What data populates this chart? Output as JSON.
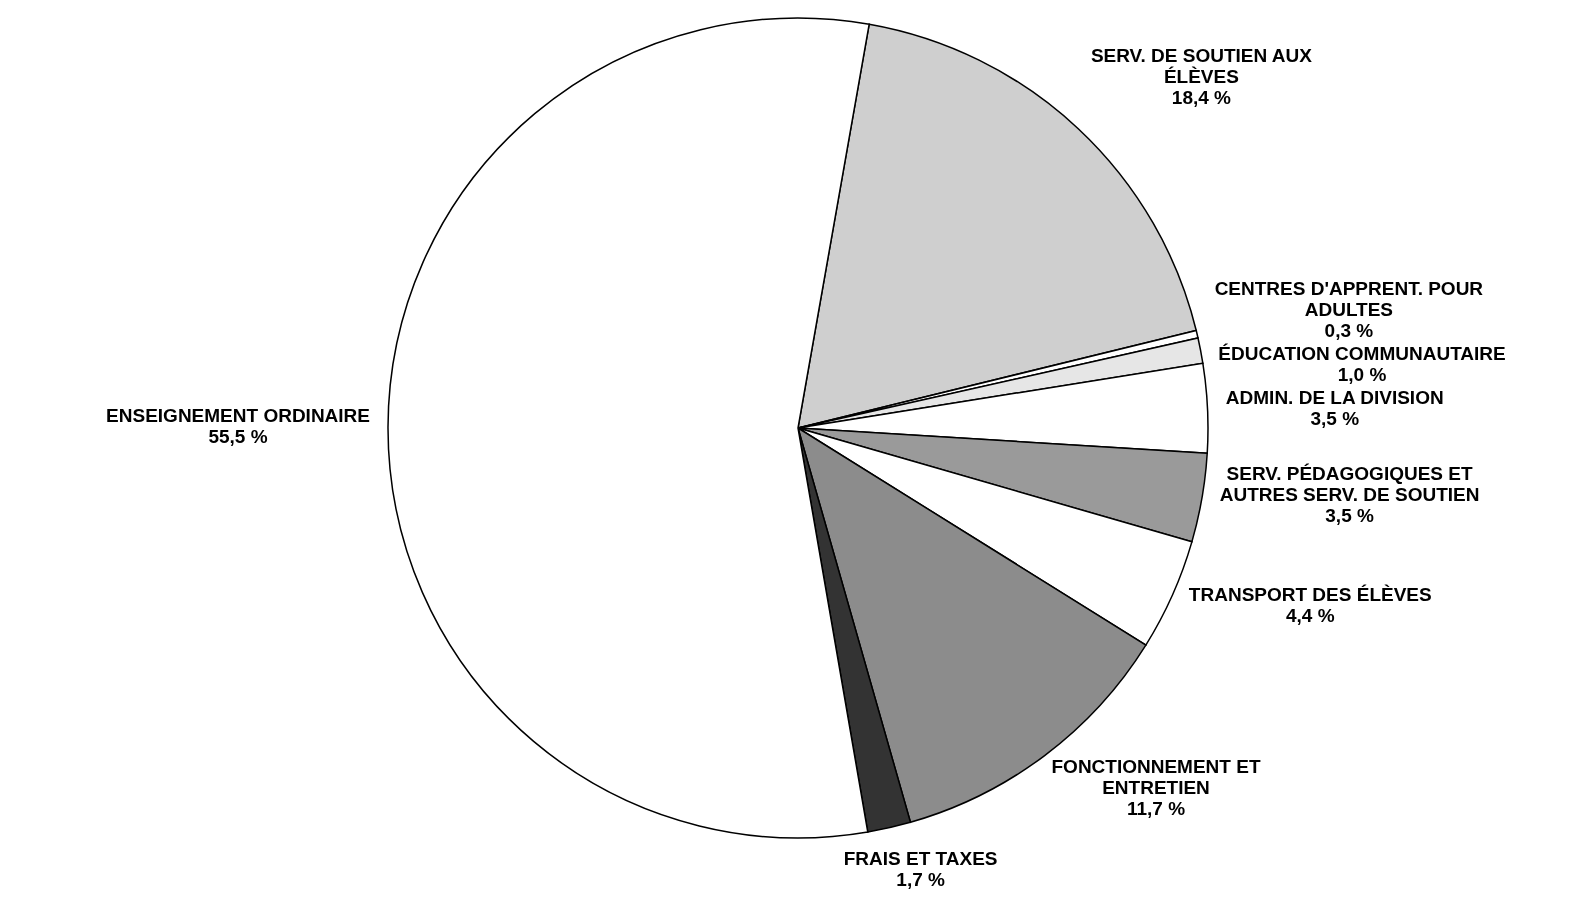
{
  "chart_data": {
    "type": "pie",
    "categories": [
      "SERV. DE SOUTIEN AUX ÉLÈVES",
      "CENTRES D'APPRENT. POUR ADULTES",
      "ÉDUCATION COMMUNAUTAIRE",
      "ADMIN. DE LA DIVISION",
      "SERV. PÉDAGOGIQUES ET AUTRES SERV. DE SOUTIEN",
      "TRANSPORT DES ÉLÈVES",
      "FONCTIONNEMENT ET ENTRETIEN",
      "FRAIS ET TAXES",
      "ENSEIGNEMENT ORDINAIRE"
    ],
    "values": [
      18.4,
      0.3,
      1.0,
      3.5,
      3.5,
      4.4,
      11.7,
      1.7,
      55.5
    ],
    "value_labels": [
      "18,4 %",
      "0,3 %",
      "1,0 %",
      "3,5 %",
      "3,5 %",
      "4,4 %",
      "11,7 %",
      "1,7 %",
      "55,5 %"
    ],
    "colors": [
      "#cfcfcf",
      "#ffffff",
      "#e6e6e6",
      "#ffffff",
      "#9a9a9a",
      "#ffffff",
      "#8c8c8c",
      "#333333",
      "#ffffff"
    ]
  }
}
